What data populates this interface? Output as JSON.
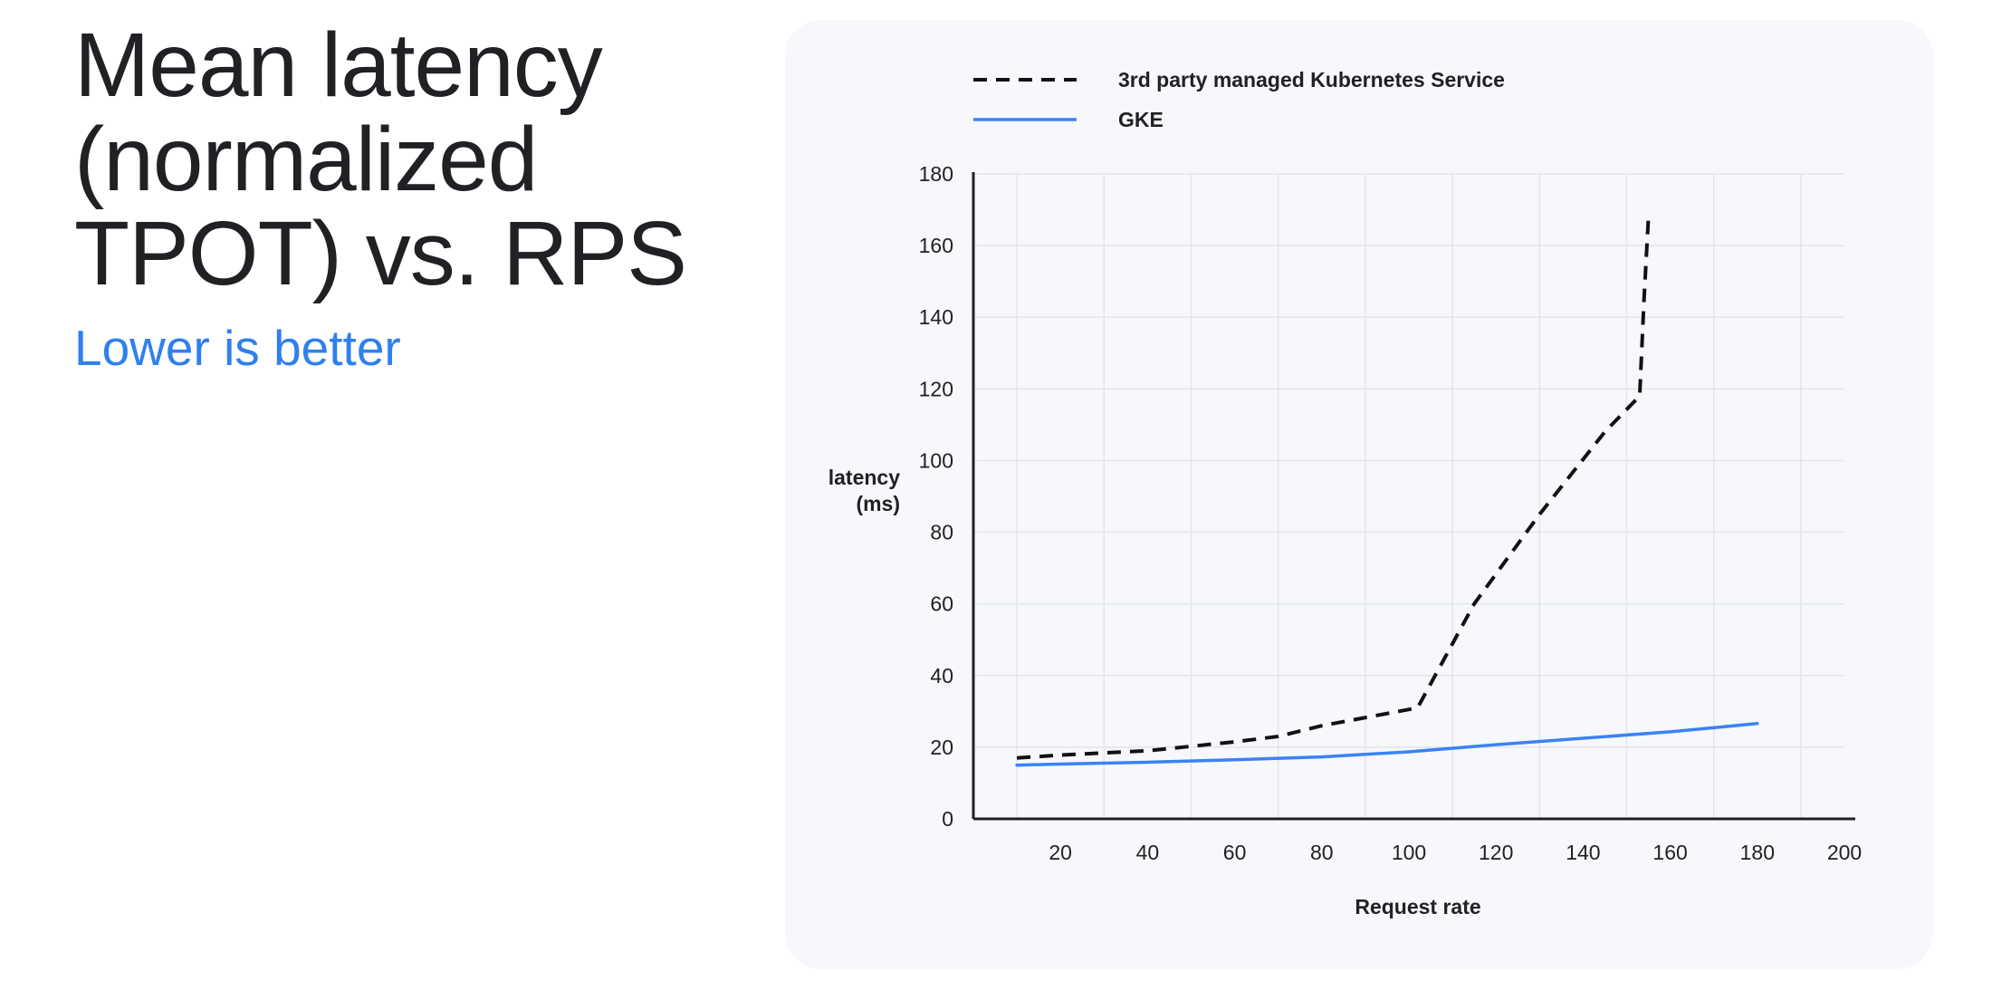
{
  "slide": {
    "title": "Mean latency (normalized TPOT) vs. RPS",
    "subtitle": "Lower is better"
  },
  "colors": {
    "title": "#202124",
    "subtitle": "#2f80ed",
    "gke_line": "#3b82f6",
    "third_party_line": "#111111",
    "card_background": "#f7f8fb",
    "grid": "#e3e5ea"
  },
  "chart_data": {
    "type": "line",
    "title": "",
    "xlabel": "Request rate",
    "ylabel_lines": [
      "latency",
      "(ms)"
    ],
    "xlim": [
      0,
      200
    ],
    "ylim": [
      0,
      180
    ],
    "xticks": [
      20,
      40,
      60,
      80,
      100,
      120,
      140,
      160,
      180,
      200
    ],
    "yticks": [
      0,
      20,
      40,
      60,
      80,
      100,
      120,
      140,
      160,
      180
    ],
    "grid": true,
    "legend_position": "top",
    "series": [
      {
        "name": "3rd party managed Kubernetes Service",
        "style": "dashed",
        "x": [
          10,
          20,
          40,
          60,
          70,
          80,
          102,
          115,
          130,
          145,
          153,
          154,
          155
        ],
        "y": [
          17,
          17.8,
          19,
          21.5,
          23,
          26,
          31,
          60,
          85,
          108,
          118,
          145,
          168
        ]
      },
      {
        "name": "GKE",
        "style": "solid",
        "x": [
          10,
          20,
          40,
          60,
          80,
          100,
          120,
          140,
          160,
          180
        ],
        "y": [
          15,
          15.3,
          15.8,
          16.5,
          17.3,
          18.7,
          20.7,
          22.5,
          24.3,
          26.6
        ]
      }
    ]
  }
}
